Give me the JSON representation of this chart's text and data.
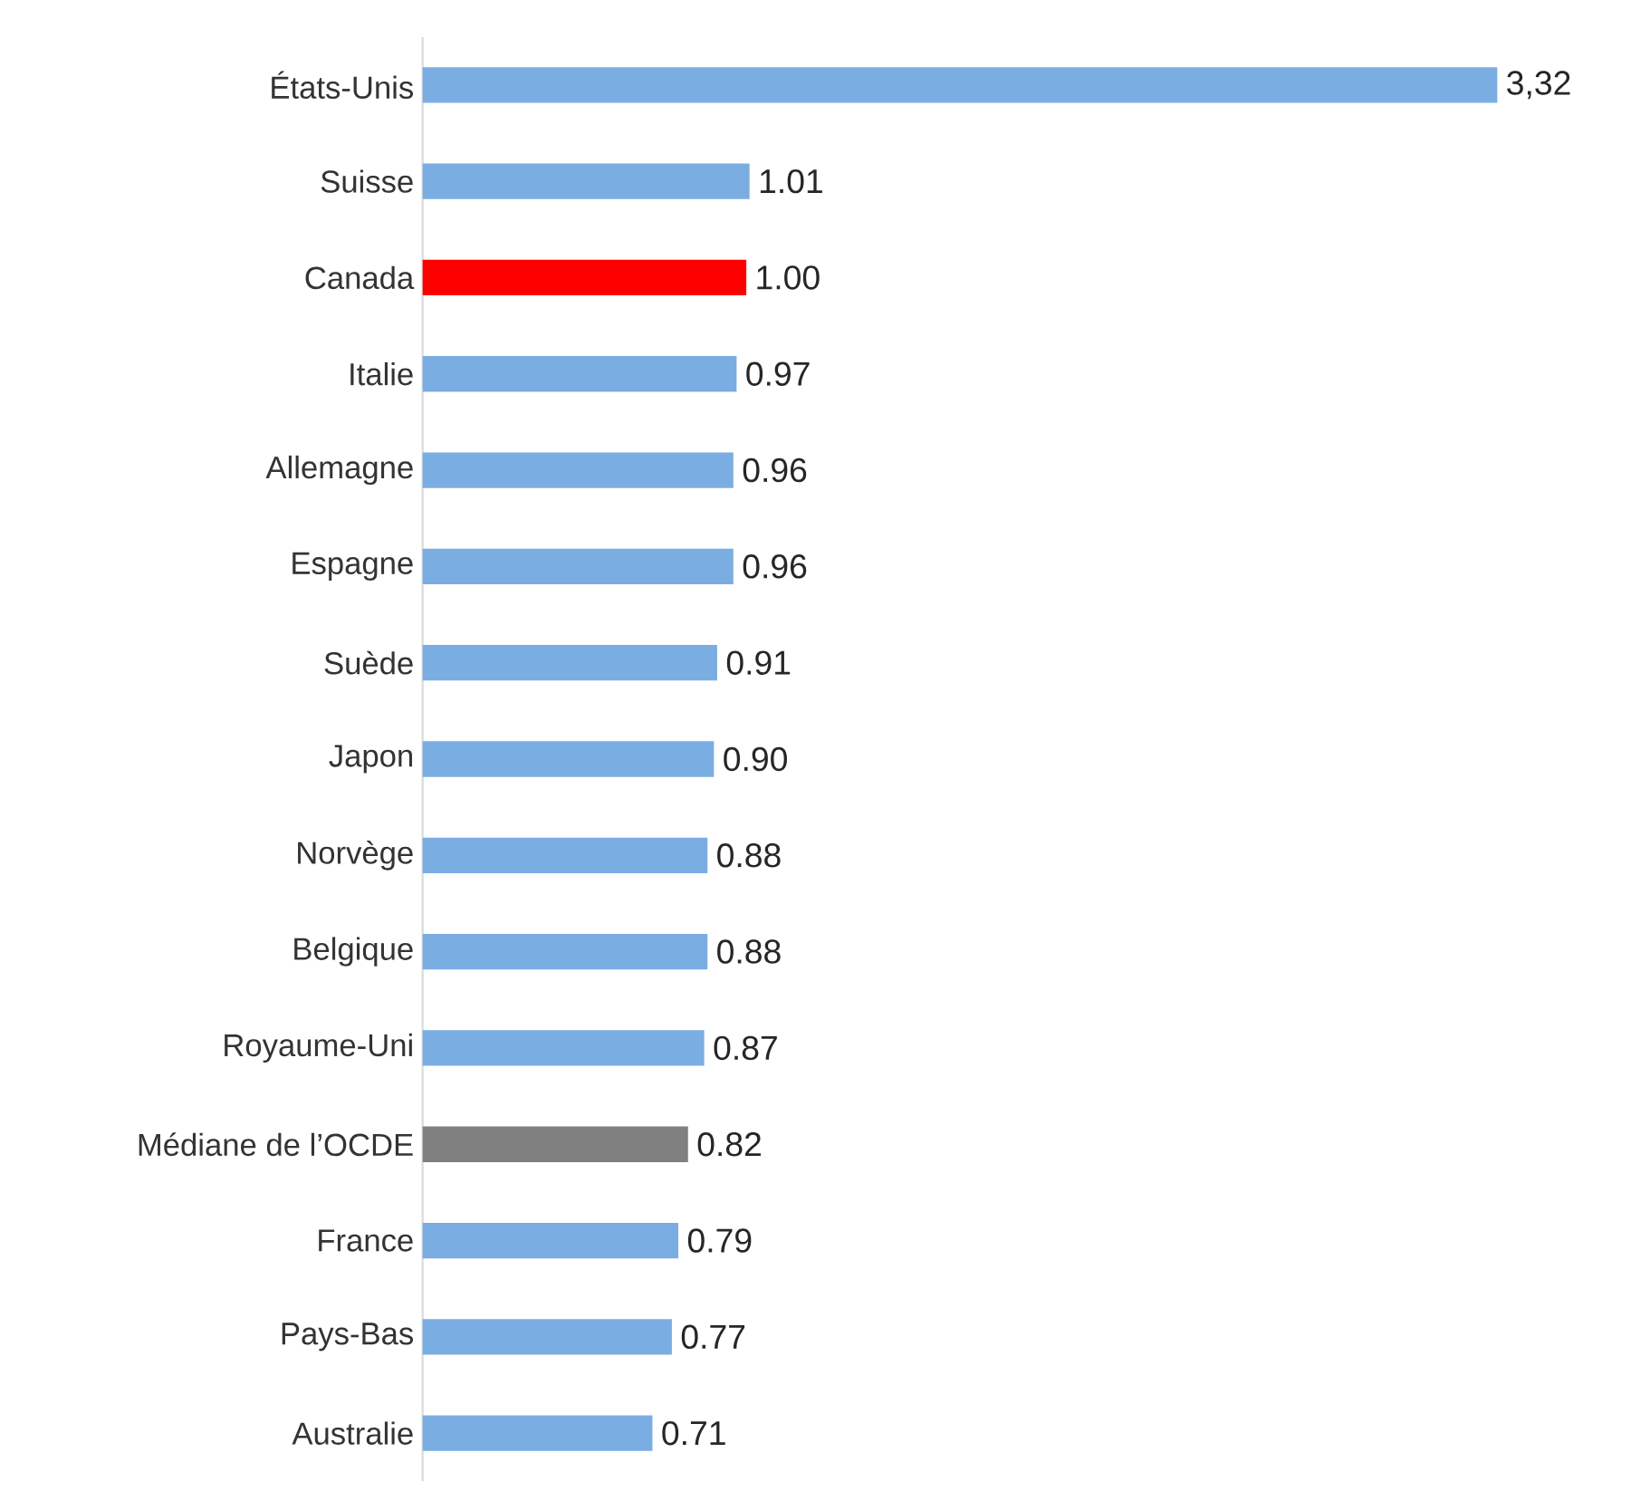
{
  "chart_data": {
    "type": "bar",
    "orientation": "horizontal",
    "categories": [
      "États-Unis",
      "Suisse",
      "Canada",
      "Italie",
      "Allemagne",
      "Espagne",
      "Suède",
      "Japon",
      "Norvège",
      "Belgique",
      "Royaume-Uni",
      "Médiane de l’OCDE",
      "France",
      "Pays-Bas",
      "Australie"
    ],
    "values": [
      3.32,
      1.01,
      1.0,
      0.97,
      0.96,
      0.96,
      0.91,
      0.9,
      0.88,
      0.88,
      0.87,
      0.82,
      0.79,
      0.77,
      0.71
    ],
    "value_labels": [
      "3,32",
      "1.01",
      "1.00",
      "0.97",
      "0.96",
      "0.96",
      "0.91",
      "0.90",
      "0.88",
      "0.88",
      "0.87",
      "0.82",
      "0.79",
      "0.77",
      "0.71"
    ],
    "colors": [
      "#7aade2",
      "#7aade2",
      "#ff0000",
      "#7aade2",
      "#7aade2",
      "#7aade2",
      "#7aade2",
      "#7aade2",
      "#7aade2",
      "#7aade2",
      "#7aade2",
      "#808080",
      "#7aade2",
      "#7aade2",
      "#7aade2"
    ],
    "tick_labels": "y"
  }
}
